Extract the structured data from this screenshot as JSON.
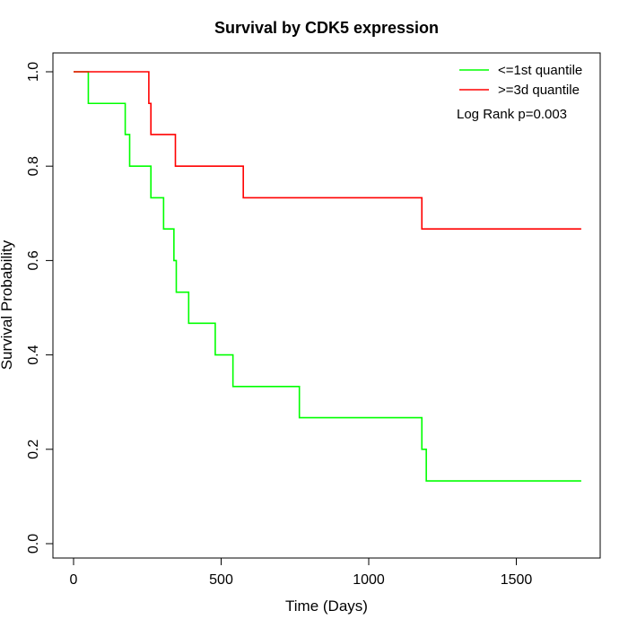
{
  "chart_data": {
    "type": "line",
    "title": "Survival by CDK5 expression",
    "xlabel": "Time (Days)",
    "ylabel": "Survival Probability",
    "xlim": [
      0,
      1750
    ],
    "ylim": [
      0,
      1
    ],
    "x_ticks": [
      0,
      500,
      1000,
      1500
    ],
    "x_tick_labels": [
      "0",
      "500",
      "1000",
      "1500"
    ],
    "y_ticks": [
      0,
      0.2,
      0.4,
      0.6,
      0.8,
      1.0
    ],
    "y_tick_labels": [
      "0.0",
      "0.2",
      "0.4",
      "0.6",
      "0.8",
      "1.0"
    ],
    "grid": false,
    "legend_position": "top-right",
    "annotation": "Log Rank p=0.003",
    "series": [
      {
        "name": "<=1st quantile",
        "color": "#00ff00",
        "x": [
          0,
          50,
          175,
          190,
          262,
          305,
          340,
          348,
          390,
          480,
          540,
          765,
          1180,
          1195,
          1720
        ],
        "y": [
          1.0,
          0.933,
          0.867,
          0.8,
          0.733,
          0.667,
          0.6,
          0.533,
          0.467,
          0.4,
          0.333,
          0.267,
          0.2,
          0.133,
          0.133
        ]
      },
      {
        "name": ">=3d quantile",
        "color": "#ff0000",
        "x": [
          0,
          255,
          262,
          345,
          575,
          1180,
          1720
        ],
        "y": [
          1.0,
          0.933,
          0.867,
          0.8,
          0.733,
          0.667,
          0.667
        ]
      }
    ]
  }
}
